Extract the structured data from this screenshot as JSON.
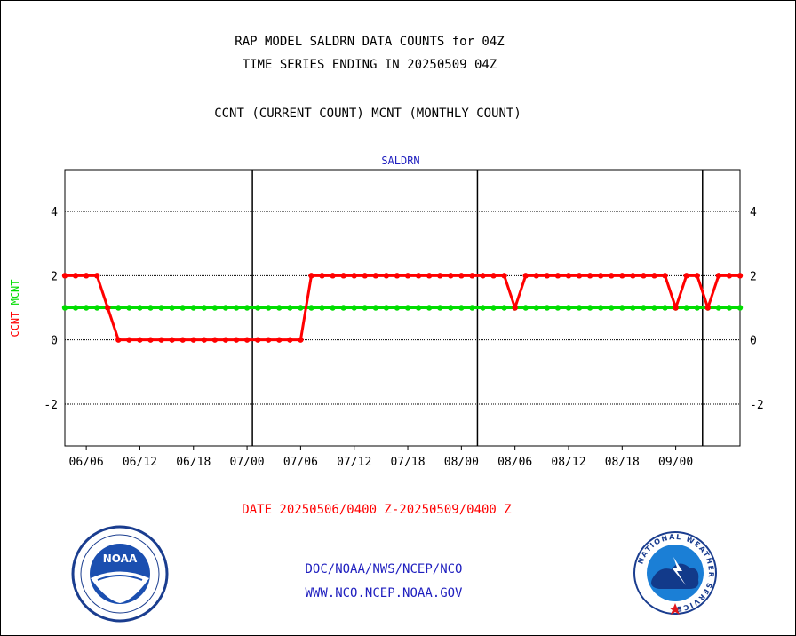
{
  "header": {
    "title_line1": "RAP MODEL SALDRN DATA COUNTS for 04Z",
    "title_line2": "TIME SERIES ENDING IN 20250509 04Z",
    "subtitle": "CCNT (CURRENT COUNT) MCNT (MONTHLY COUNT)"
  },
  "footer": {
    "date_range": "DATE 20250506/0400 Z-20250509/0400 Z",
    "link1": "DOC/NOAA/NWS/NCEP/NCO",
    "link2": "WWW.NCO.NCEP.NOAA.GOV"
  },
  "logos": {
    "noaa_text": "NOAA",
    "nws_text": "NATIONAL WEATHER SERVICE"
  },
  "chart_data": {
    "type": "line",
    "title": "SALDRN",
    "ylabel_series": [
      "CCNT",
      "MCNT"
    ],
    "ylim": [
      -3.3,
      5.3
    ],
    "yticks": [
      -2,
      0,
      2,
      4
    ],
    "ytick_labels": [
      "-2",
      "0",
      "2",
      "4"
    ],
    "xlim": [
      0,
      63
    ],
    "xticks": [
      2,
      7,
      12,
      17,
      22,
      27,
      32,
      37,
      42,
      47,
      52,
      57
    ],
    "xtick_labels": [
      "06/06",
      "06/12",
      "06/18",
      "07/00",
      "07/06",
      "07/12",
      "07/18",
      "08/00",
      "08/06",
      "08/12",
      "08/18",
      "09/00"
    ],
    "vlines": [
      17.5,
      38.5,
      59.5
    ],
    "grid": true,
    "series": [
      {
        "name": "CCNT",
        "color": "#ff0000",
        "x": [
          0,
          1,
          2,
          3,
          4,
          5,
          6,
          7,
          8,
          9,
          10,
          11,
          12,
          13,
          14,
          15,
          16,
          17,
          18,
          19,
          20,
          21,
          22,
          23,
          24,
          25,
          26,
          27,
          28,
          29,
          30,
          31,
          32,
          33,
          34,
          35,
          36,
          37,
          38,
          39,
          40,
          41,
          42,
          43,
          44,
          45,
          46,
          47,
          48,
          49,
          50,
          51,
          52,
          53,
          54,
          55,
          56,
          57,
          58,
          59,
          60,
          61,
          62,
          63
        ],
        "values": [
          2,
          2,
          2,
          2,
          1,
          0,
          0,
          0,
          0,
          0,
          0,
          0,
          0,
          0,
          0,
          0,
          0,
          0,
          0,
          0,
          0,
          0,
          0,
          2,
          2,
          2,
          2,
          2,
          2,
          2,
          2,
          2,
          2,
          2,
          2,
          2,
          2,
          2,
          2,
          2,
          2,
          2,
          1,
          2,
          2,
          2,
          2,
          2,
          2,
          2,
          2,
          2,
          2,
          2,
          2,
          2,
          2,
          1,
          2,
          2,
          1,
          2,
          2,
          2
        ]
      },
      {
        "name": "MCNT",
        "color": "#00dd00",
        "x": [
          0,
          1,
          2,
          3,
          4,
          5,
          6,
          7,
          8,
          9,
          10,
          11,
          12,
          13,
          14,
          15,
          16,
          17,
          18,
          19,
          20,
          21,
          22,
          23,
          24,
          25,
          26,
          27,
          28,
          29,
          30,
          31,
          32,
          33,
          34,
          35,
          36,
          37,
          38,
          39,
          40,
          41,
          42,
          43,
          44,
          45,
          46,
          47,
          48,
          49,
          50,
          51,
          52,
          53,
          54,
          55,
          56,
          57,
          58,
          59,
          60,
          61,
          62,
          63
        ],
        "values": [
          1,
          1,
          1,
          1,
          1,
          1,
          1,
          1,
          1,
          1,
          1,
          1,
          1,
          1,
          1,
          1,
          1,
          1,
          1,
          1,
          1,
          1,
          1,
          1,
          1,
          1,
          1,
          1,
          1,
          1,
          1,
          1,
          1,
          1,
          1,
          1,
          1,
          1,
          1,
          1,
          1,
          1,
          1,
          1,
          1,
          1,
          1,
          1,
          1,
          1,
          1,
          1,
          1,
          1,
          1,
          1,
          1,
          1,
          1,
          1,
          1,
          1,
          1,
          1
        ]
      }
    ]
  }
}
